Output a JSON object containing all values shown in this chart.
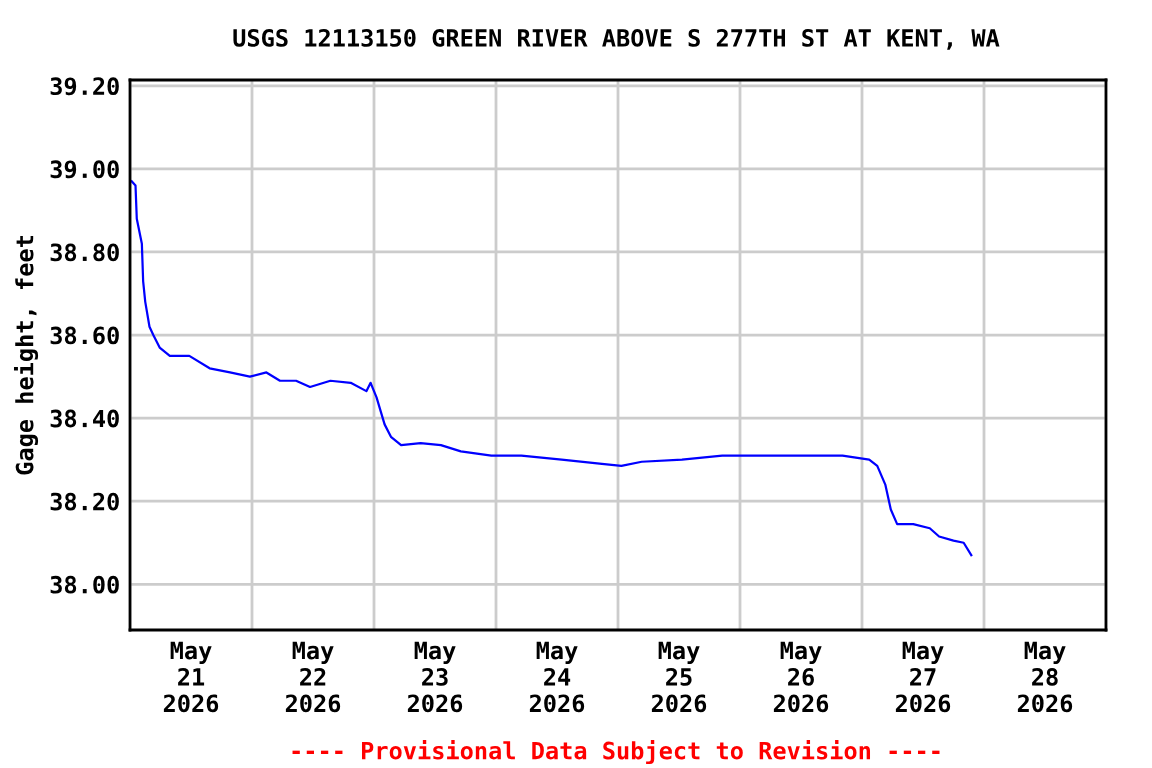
{
  "chart_data": {
    "type": "line",
    "title": "USGS 12113150 GREEN RIVER ABOVE S 277TH ST AT KENT, WA",
    "ylabel": "Gage height, feet",
    "annotations": [
      "---- Provisional Data Subject to Revision ----"
    ],
    "series": [
      {
        "color": "#0000ff",
        "x": [
          "2026-05-21T00:20",
          "2026-05-21T01:05",
          "2026-05-21T01:20",
          "2026-05-21T02:20",
          "2026-05-21T02:35",
          "2026-05-21T03:00",
          "2026-05-21T03:50",
          "2026-05-21T04:35",
          "2026-05-21T05:50",
          "2026-05-21T07:50",
          "2026-05-21T11:40",
          "2026-05-21T15:40",
          "2026-05-21T19:40",
          "2026-05-21T23:35",
          "2026-05-22T02:50",
          "2026-05-22T05:30",
          "2026-05-22T08:40",
          "2026-05-22T11:25",
          "2026-05-22T15:25",
          "2026-05-22T19:25",
          "2026-05-22T22:30",
          "2026-05-22T23:20",
          "2026-05-23T00:30",
          "2026-05-23T02:05",
          "2026-05-23T03:20",
          "2026-05-23T05:20",
          "2026-05-23T09:10",
          "2026-05-23T13:10",
          "2026-05-23T17:05",
          "2026-05-23T23:05",
          "2026-05-24T05:00",
          "2026-05-24T12:55",
          "2026-05-24T20:50",
          "2026-05-25T00:40",
          "2026-05-25T04:40",
          "2026-05-25T12:35",
          "2026-05-25T20:30",
          "2026-05-26T04:25",
          "2026-05-26T12:20",
          "2026-05-26T20:10",
          "2026-05-27T01:25",
          "2026-05-27T03:00",
          "2026-05-27T04:35",
          "2026-05-27T05:40",
          "2026-05-27T06:55",
          "2026-05-27T10:05",
          "2026-05-27T13:20",
          "2026-05-27T15:10",
          "2026-05-27T18:00",
          "2026-05-27T20:00",
          "2026-05-27T21:30"
        ],
        "values": [
          38.97,
          38.96,
          38.88,
          38.82,
          38.73,
          38.68,
          38.62,
          38.6,
          38.57,
          38.55,
          38.55,
          38.52,
          38.51,
          38.5,
          38.51,
          38.49,
          38.49,
          38.475,
          38.49,
          38.485,
          38.465,
          38.485,
          38.45,
          38.385,
          38.355,
          38.335,
          38.34,
          38.335,
          38.32,
          38.31,
          38.31,
          38.3,
          38.29,
          38.285,
          38.295,
          38.3,
          38.31,
          38.31,
          38.31,
          38.31,
          38.3,
          38.285,
          38.24,
          38.18,
          38.145,
          38.145,
          38.135,
          38.115,
          38.105,
          38.1,
          38.07
        ]
      }
    ],
    "xlim": [
      "2026-05-21T00:00",
      "2026-05-29T00:00"
    ],
    "xticks": [
      {
        "value": "2026-05-21T00:00",
        "label": null
      },
      {
        "value": "2026-05-22T00:00",
        "label": null
      },
      {
        "value": "2026-05-23T00:00",
        "label": null
      },
      {
        "value": "2026-05-24T00:00",
        "label": null
      },
      {
        "value": "2026-05-25T00:00",
        "label": null
      },
      {
        "value": "2026-05-26T00:00",
        "label": null
      },
      {
        "value": "2026-05-27T00:00",
        "label": null
      },
      {
        "value": "2026-05-28T00:00",
        "label": null
      },
      {
        "value": "2026-05-29T00:00",
        "label": null
      },
      {
        "value": "2026-05-21T12:00",
        "label": "May\n21\n2026"
      },
      {
        "value": "2026-05-22T12:00",
        "label": "May\n22\n2026"
      },
      {
        "value": "2026-05-23T12:00",
        "label": "May\n23\n2026"
      },
      {
        "value": "2026-05-24T12:00",
        "label": "May\n24\n2026"
      },
      {
        "value": "2026-05-25T12:00",
        "label": "May\n25\n2026"
      },
      {
        "value": "2026-05-26T12:00",
        "label": "May\n26\n2026"
      },
      {
        "value": "2026-05-27T12:00",
        "label": "May\n27\n2026"
      },
      {
        "value": "2026-05-28T12:00",
        "label": "May\n28\n2026"
      }
    ],
    "ylim": [
      37.89,
      39.214
    ],
    "yticks": [
      {
        "value": 38.0,
        "label": "38.00"
      },
      {
        "value": 38.2,
        "label": "38.20"
      },
      {
        "value": 38.4,
        "label": "38.40"
      },
      {
        "value": 38.6,
        "label": "38.60"
      },
      {
        "value": 38.8,
        "label": "38.80"
      },
      {
        "value": 39.0,
        "label": "39.00"
      },
      {
        "value": 39.2,
        "label": "39.20"
      }
    ],
    "grid": true,
    "line_style": "solid",
    "marker": "none"
  }
}
